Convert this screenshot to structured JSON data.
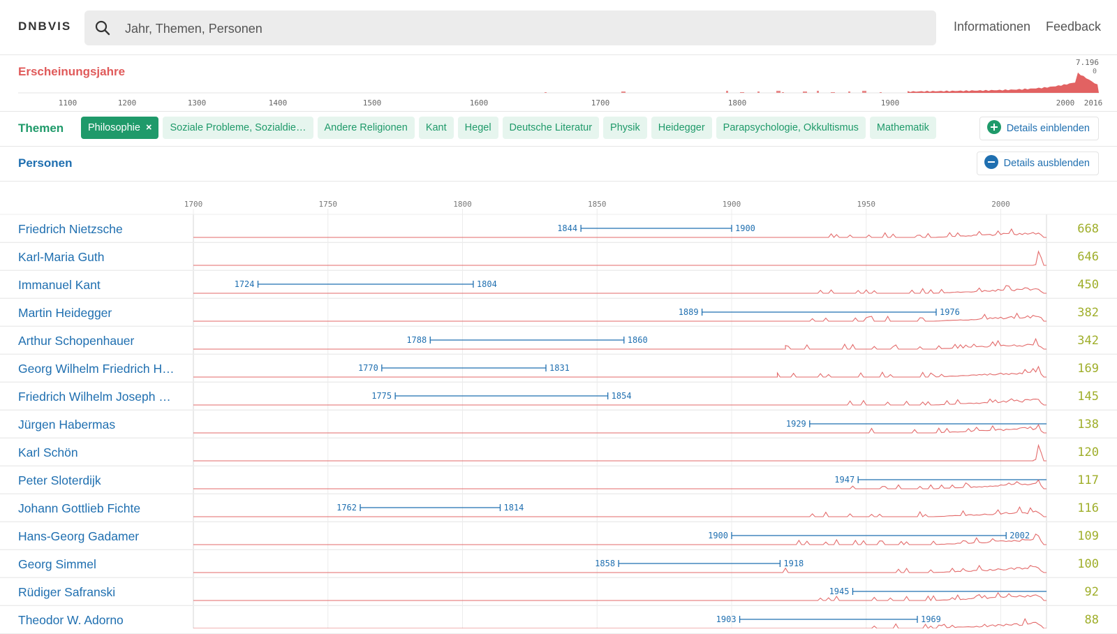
{
  "app": {
    "brand": "DNBVIS"
  },
  "search": {
    "placeholder": "Jahr, Themen, Personen"
  },
  "nav": {
    "info": "Informationen",
    "feedback": "Feedback"
  },
  "years": {
    "title": "Erscheinungsjahre",
    "max_label": "7.196",
    "min_label": "0",
    "ticks": [
      "1100",
      "1200",
      "1300",
      "1400",
      "1500",
      "1600",
      "1700",
      "1800",
      "1900",
      "2000",
      "2016"
    ]
  },
  "themes": {
    "title": "Themen",
    "chips": [
      {
        "label": "Philosophie",
        "active": true,
        "remove": "×"
      },
      {
        "label": "Soziale Probleme, Sozialdie…"
      },
      {
        "label": "Andere Religionen"
      },
      {
        "label": "Kant"
      },
      {
        "label": "Hegel"
      },
      {
        "label": "Deutsche Literatur"
      },
      {
        "label": "Physik"
      },
      {
        "label": "Heidegger"
      },
      {
        "label": "Parapsychologie, Okkultismus"
      },
      {
        "label": "Mathematik"
      }
    ],
    "details_button": "Details einblenden"
  },
  "persons": {
    "title": "Personen",
    "details_button": "Details ausblenden",
    "axis_ticks": [
      1700,
      1750,
      1800,
      1850,
      1900,
      1950,
      2000
    ],
    "axis_min": 1700,
    "axis_max": 2017,
    "rows": [
      {
        "name": "Friedrich Nietzsche",
        "birth": 1844,
        "death": 1900,
        "count": "668"
      },
      {
        "name": "Karl-Maria Guth",
        "count": "646"
      },
      {
        "name": "Immanuel Kant",
        "birth": 1724,
        "death": 1804,
        "count": "450"
      },
      {
        "name": "Martin Heidegger",
        "birth": 1889,
        "death": 1976,
        "count": "382"
      },
      {
        "name": "Arthur Schopenhauer",
        "birth": 1788,
        "death": 1860,
        "count": "342"
      },
      {
        "name": "Georg Wilhelm Friedrich H…",
        "birth": 1770,
        "death": 1831,
        "count": "169"
      },
      {
        "name": "Friedrich Wilhelm Joseph …",
        "birth": 1775,
        "death": 1854,
        "count": "145"
      },
      {
        "name": "Jürgen Habermas",
        "birth": 1929,
        "count": "138"
      },
      {
        "name": "Karl Schön",
        "count": "120"
      },
      {
        "name": "Peter Sloterdijk",
        "birth": 1947,
        "count": "117"
      },
      {
        "name": "Johann Gottlieb Fichte",
        "birth": 1762,
        "death": 1814,
        "count": "116"
      },
      {
        "name": "Hans-Georg Gadamer",
        "birth": 1900,
        "death": 2002,
        "count": "109"
      },
      {
        "name": "Georg Simmel",
        "birth": 1858,
        "death": 1918,
        "count": "100"
      },
      {
        "name": "Rüdiger Safranski",
        "birth": 1945,
        "count": "92"
      },
      {
        "name": "Theodor W. Adorno",
        "birth": 1903,
        "death": 1969,
        "count": "88"
      }
    ]
  },
  "colors": {
    "person_blue": "#1f6fb0",
    "theme_green": "#1f9a6a",
    "year_red": "#e05a5a",
    "count_olive": "#9fae2a"
  }
}
